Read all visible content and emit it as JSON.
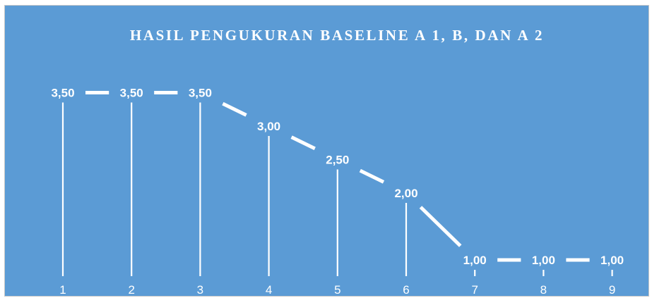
{
  "colors": {
    "background": "#5b9bd5",
    "foreground": "#ffffff"
  },
  "chart_data": {
    "type": "line",
    "title": "HASIL PENGUKURAN BASELINE A 1, B, DAN A 2",
    "xlabel": "",
    "ylabel": "",
    "categories": [
      "1",
      "2",
      "3",
      "4",
      "5",
      "6",
      "7",
      "8",
      "9"
    ],
    "values": [
      3.5,
      3.5,
      3.5,
      3.0,
      2.5,
      2.0,
      1.0,
      1.0,
      1.0
    ],
    "data_labels": [
      "3,50",
      "3,50",
      "3,50",
      "3,00",
      "2,50",
      "2,00",
      "1,00",
      "1,00",
      "1,00"
    ],
    "ylim": [
      0,
      4
    ],
    "drop_lines": true,
    "grid": false,
    "legend": "none"
  }
}
